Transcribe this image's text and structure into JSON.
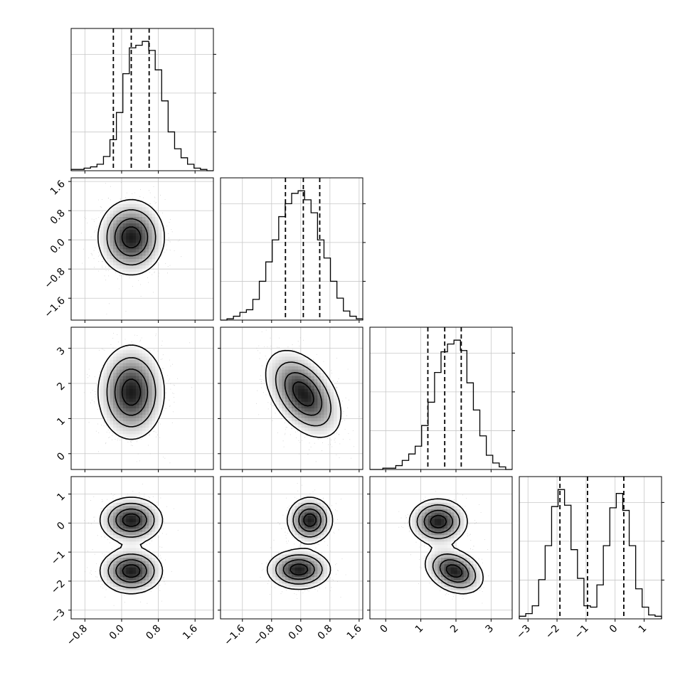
{
  "chart_data": {
    "type": "corner",
    "description_style": "posterior corner plot with 1D histograms on diagonal and 2D density contours below",
    "colors": {
      "line": "#000000",
      "grid": "#c8c8c8",
      "points": "#9a9a9a"
    },
    "grid": true,
    "params": [
      {
        "range": [
          -1.1,
          2.0
        ],
        "ticks": [
          -0.8,
          0.0,
          0.8,
          1.6
        ],
        "tick_labels": [
          "−0.8",
          "0.0",
          "0.8",
          "1.6"
        ]
      },
      {
        "range": [
          -2.2,
          1.7
        ],
        "ticks": [
          -1.6,
          -0.8,
          0.0,
          0.8,
          1.6
        ],
        "tick_labels": [
          "−1.6",
          "−0.8",
          "0.0",
          "0.8",
          "1.6"
        ]
      },
      {
        "range": [
          -0.45,
          3.6
        ],
        "ticks": [
          0,
          1,
          2,
          3
        ],
        "tick_labels": [
          "0",
          "1",
          "2",
          "3"
        ]
      },
      {
        "range": [
          -3.3,
          1.6
        ],
        "ticks": [
          -3,
          -2,
          -1,
          0,
          1
        ],
        "tick_labels": [
          "−3",
          "−2",
          "−1",
          "0",
          "1"
        ]
      }
    ],
    "histograms": [
      {
        "param": 0,
        "quantiles": [
          -0.18,
          0.21,
          0.6
        ],
        "bins": [
          -1.1,
          2.0
        ],
        "counts": [
          0.01,
          0.01,
          0.02,
          0.03,
          0.05,
          0.11,
          0.24,
          0.45,
          0.75,
          0.95,
          0.97,
          1.0,
          0.93,
          0.78,
          0.54,
          0.3,
          0.17,
          0.1,
          0.05,
          0.02,
          0.01,
          0.0
        ]
      },
      {
        "param": 1,
        "quantiles": [
          -0.42,
          0.07,
          0.52
        ],
        "bins": [
          -2.2,
          1.7
        ],
        "counts": [
          0.0,
          0.01,
          0.03,
          0.06,
          0.08,
          0.16,
          0.3,
          0.45,
          0.62,
          0.8,
          0.9,
          0.98,
          1.0,
          0.93,
          0.83,
          0.62,
          0.48,
          0.3,
          0.17,
          0.07,
          0.03,
          0.01
        ]
      },
      {
        "param": 2,
        "quantiles": [
          1.2,
          1.68,
          2.15
        ],
        "bins": [
          -0.45,
          3.6
        ],
        "counts": [
          0.0,
          0.0,
          0.01,
          0.01,
          0.03,
          0.07,
          0.12,
          0.18,
          0.34,
          0.52,
          0.75,
          0.91,
          0.97,
          1.0,
          0.92,
          0.67,
          0.46,
          0.26,
          0.11,
          0.05,
          0.02,
          0.0
        ]
      },
      {
        "param": 3,
        "quantiles": [
          -1.9,
          -0.95,
          0.3
        ],
        "bins": [
          -3.3,
          1.6
        ],
        "counts": [
          0.02,
          0.04,
          0.1,
          0.3,
          0.56,
          0.86,
          0.99,
          0.87,
          0.53,
          0.31,
          0.1,
          0.09,
          0.26,
          0.56,
          0.85,
          0.96,
          0.83,
          0.56,
          0.23,
          0.09,
          0.03,
          0.02
        ]
      }
    ],
    "pairs": [
      {
        "x": 0,
        "y": 1,
        "modes": [
          {
            "cx": 0.21,
            "cy": 0.07,
            "sx": 0.35,
            "sy": 0.5,
            "rho": 0.0,
            "w": 1.0
          }
        ]
      },
      {
        "x": 0,
        "y": 2,
        "modes": [
          {
            "cx": 0.21,
            "cy": 1.75,
            "sx": 0.35,
            "sy": 0.65,
            "rho": 0.0,
            "w": 1.0
          }
        ]
      },
      {
        "x": 1,
        "y": 2,
        "modes": [
          {
            "cx": 0.07,
            "cy": 1.7,
            "sx": 0.5,
            "sy": 0.6,
            "rho": -0.45,
            "w": 1.0
          }
        ]
      },
      {
        "x": 0,
        "y": 3,
        "modes": [
          {
            "cx": 0.21,
            "cy": 0.1,
            "sx": 0.33,
            "sy": 0.38,
            "rho": 0.0,
            "w": 0.5
          },
          {
            "cx": 0.21,
            "cy": -1.65,
            "sx": 0.33,
            "sy": 0.38,
            "rho": 0.0,
            "w": 0.5
          }
        ]
      },
      {
        "x": 1,
        "y": 3,
        "modes": [
          {
            "cx": 0.25,
            "cy": 0.1,
            "sx": 0.3,
            "sy": 0.38,
            "rho": 0.0,
            "w": 0.5
          },
          {
            "cx": -0.05,
            "cy": -1.6,
            "sx": 0.42,
            "sy": 0.33,
            "rho": 0.0,
            "w": 0.5
          }
        ]
      },
      {
        "x": 2,
        "y": 3,
        "modes": [
          {
            "cx": 1.5,
            "cy": 0.05,
            "sx": 0.4,
            "sy": 0.38,
            "rho": 0.0,
            "w": 0.5
          },
          {
            "cx": 1.95,
            "cy": -1.65,
            "sx": 0.4,
            "sy": 0.38,
            "rho": -0.3,
            "w": 0.5
          }
        ]
      }
    ]
  }
}
